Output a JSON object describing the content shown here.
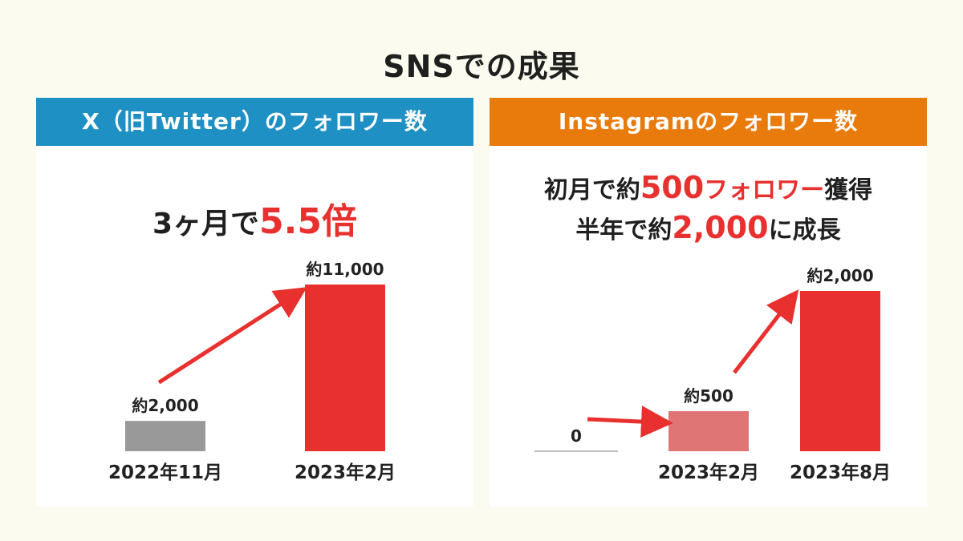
{
  "page": {
    "title": "SNSでの成果"
  },
  "panels": {
    "x": {
      "header": "X（旧Twitter）のフォロワー数",
      "headline": {
        "prefix": "3ヶ月で",
        "highlight": "5.5倍"
      }
    },
    "instagram": {
      "header": "Instagramのフォロワー数",
      "headline_line1": {
        "prefix": "初月で約",
        "highlight_num": "500",
        "highlight_word": "フォロワー",
        "suffix": "獲得"
      },
      "headline_line2": {
        "prefix": "半年で約",
        "highlight": "2,000",
        "suffix": "に成長"
      }
    }
  },
  "colors": {
    "gray_bar": "#999999",
    "light_red_bar": "#e07575",
    "red_bar": "#e8302f",
    "arrow": "#e8302f",
    "baseline": "#bbbbbb"
  },
  "chart_data": [
    {
      "type": "bar",
      "title": "X（旧Twitter）のフォロワー数",
      "categories": [
        "2022年11月",
        "2023年2月"
      ],
      "values": [
        2000,
        11000
      ],
      "data_labels": [
        "約2,000",
        "約11,000"
      ],
      "bar_colors": [
        "#999999",
        "#e8302f"
      ],
      "ylim": [
        0,
        11000
      ],
      "annotation": "3ヶ月で5.5倍"
    },
    {
      "type": "bar",
      "title": "Instagramのフォロワー数",
      "categories": [
        "",
        "2023年2月",
        "2023年8月"
      ],
      "values": [
        0,
        500,
        2000
      ],
      "data_labels": [
        "0",
        "約500",
        "約2,000"
      ],
      "bar_colors": [
        "#999999",
        "#e07575",
        "#e8302f"
      ],
      "ylim": [
        0,
        2000
      ],
      "annotation": "初月で約500フォロワー獲得 半年で約2,000に成長"
    }
  ]
}
